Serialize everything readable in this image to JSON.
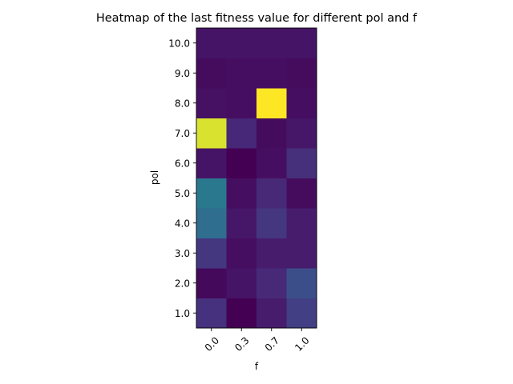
{
  "chart_data": {
    "type": "heatmap",
    "title": "Heatmap of the last fitness value for different pol and f",
    "xlabel": "f",
    "ylabel": "pol",
    "x_categories": [
      "0.0",
      "0.3",
      "0.7",
      "1.0"
    ],
    "y_categories": [
      "1.0",
      "2.0",
      "3.0",
      "4.0",
      "5.0",
      "6.0",
      "7.0",
      "8.0",
      "9.0",
      "10.0"
    ],
    "colormap": "viridis",
    "values": [
      [
        0.18,
        0.0,
        0.1,
        0.23
      ],
      [
        0.03,
        0.07,
        0.15,
        0.3
      ],
      [
        0.2,
        0.05,
        0.1,
        0.1
      ],
      [
        0.45,
        0.08,
        0.2,
        0.1
      ],
      [
        0.5,
        0.05,
        0.15,
        0.04
      ],
      [
        0.07,
        0.0,
        0.05,
        0.17
      ],
      [
        0.96,
        0.14,
        0.04,
        0.08
      ],
      [
        0.06,
        0.05,
        1.0,
        0.05
      ],
      [
        0.04,
        0.05,
        0.05,
        0.04
      ],
      [
        0.07,
        0.07,
        0.07,
        0.07
      ]
    ]
  }
}
